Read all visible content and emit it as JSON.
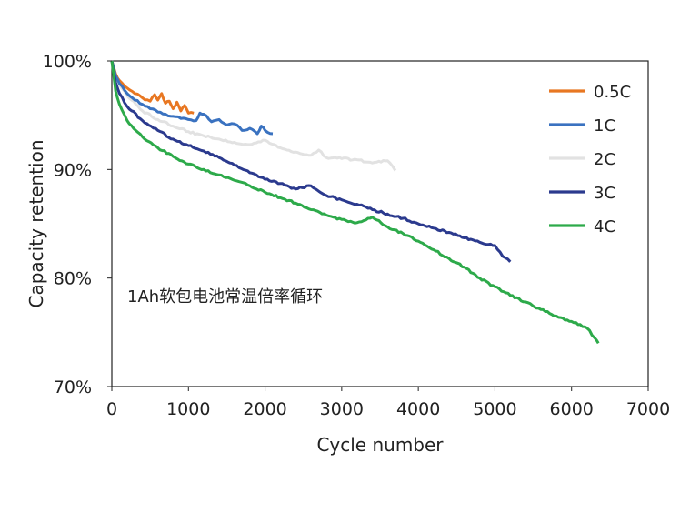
{
  "chart_data": {
    "type": "line",
    "title": "",
    "xlabel": "Cycle number",
    "ylabel": "Capacity retention",
    "annotation": "1Ah软包电池常温倍率循环",
    "xlim": [
      0,
      7000
    ],
    "ylim": [
      70,
      100
    ],
    "x_ticks": [
      0,
      1000,
      2000,
      3000,
      4000,
      5000,
      6000,
      7000
    ],
    "x_tick_labels": [
      "0",
      "1000",
      "2000",
      "3000",
      "4000",
      "5000",
      "6000",
      "7000"
    ],
    "y_ticks": [
      70,
      80,
      90,
      100
    ],
    "y_tick_labels": [
      "70%",
      "80%",
      "90%",
      "100%"
    ],
    "grid": false,
    "legend_position": "top-right",
    "series": [
      {
        "name": "0.5C",
        "color": "#E87722",
        "x": [
          0,
          50,
          100,
          200,
          300,
          400,
          500,
          560,
          600,
          650,
          700,
          750,
          800,
          850,
          900,
          950,
          1000,
          1070
        ],
        "y": [
          100,
          98.8,
          98.2,
          97.5,
          97.0,
          96.6,
          96.3,
          96.9,
          96.4,
          97.0,
          96.1,
          96.3,
          95.6,
          96.2,
          95.4,
          95.9,
          95.2,
          95.2
        ]
      },
      {
        "name": "1C",
        "color": "#3A72C0",
        "x": [
          0,
          50,
          100,
          200,
          300,
          400,
          500,
          600,
          700,
          800,
          900,
          1000,
          1100,
          1150,
          1200,
          1300,
          1400,
          1500,
          1600,
          1700,
          1800,
          1900,
          1950,
          2000,
          2100
        ],
        "y": [
          100,
          98.6,
          97.9,
          97.0,
          96.4,
          96.0,
          95.6,
          95.3,
          95.1,
          94.9,
          94.7,
          94.6,
          94.5,
          95.2,
          95.1,
          94.4,
          94.6,
          94.1,
          94.2,
          93.6,
          93.8,
          93.3,
          94.0,
          93.6,
          93.3
        ]
      },
      {
        "name": "2C",
        "color": "#E2E2E2",
        "x": [
          0,
          50,
          100,
          200,
          400,
          600,
          800,
          1000,
          1200,
          1400,
          1600,
          1800,
          2000,
          2200,
          2400,
          2600,
          2700,
          2800,
          3000,
          3200,
          3400,
          3600,
          3700
        ],
        "y": [
          100,
          98.5,
          97.8,
          96.8,
          95.4,
          94.6,
          94.0,
          93.5,
          93.1,
          92.8,
          92.5,
          92.3,
          92.7,
          92.0,
          91.6,
          91.3,
          91.8,
          91.1,
          91.0,
          90.9,
          90.6,
          90.8,
          89.9
        ]
      },
      {
        "name": "3C",
        "color": "#2B3A8E",
        "x": [
          0,
          50,
          100,
          200,
          400,
          600,
          800,
          1000,
          1200,
          1400,
          1600,
          1800,
          2000,
          2200,
          2400,
          2600,
          2700,
          2800,
          3000,
          3200,
          3400,
          3600,
          3800,
          4000,
          4200,
          4400,
          4600,
          4800,
          5000,
          5100,
          5200
        ],
        "y": [
          100,
          98.0,
          97.0,
          95.8,
          94.5,
          93.6,
          92.8,
          92.2,
          91.7,
          91.1,
          90.4,
          89.7,
          89.1,
          88.7,
          88.2,
          88.5,
          88.0,
          87.6,
          87.2,
          86.8,
          86.3,
          85.9,
          85.5,
          85.0,
          84.6,
          84.2,
          83.7,
          83.3,
          83.0,
          82.0,
          81.5
        ]
      },
      {
        "name": "4C",
        "color": "#2DAA4A",
        "x": [
          0,
          50,
          100,
          200,
          400,
          600,
          800,
          1000,
          1200,
          1400,
          1600,
          1800,
          2000,
          2200,
          2400,
          2600,
          2800,
          3000,
          3200,
          3400,
          3600,
          3800,
          4000,
          4200,
          4400,
          4600,
          4800,
          5000,
          5200,
          5400,
          5600,
          5800,
          6000,
          6200,
          6300,
          6350
        ],
        "y": [
          100,
          97.2,
          96.0,
          94.5,
          93.0,
          92.0,
          91.2,
          90.5,
          90.0,
          89.5,
          89.0,
          88.5,
          87.9,
          87.4,
          86.9,
          86.3,
          85.8,
          85.4,
          85.1,
          85.6,
          84.7,
          84.1,
          83.4,
          82.6,
          81.8,
          81.0,
          80.0,
          79.2,
          78.4,
          77.8,
          77.1,
          76.5,
          76.0,
          75.4,
          74.5,
          74.0
        ]
      }
    ]
  }
}
